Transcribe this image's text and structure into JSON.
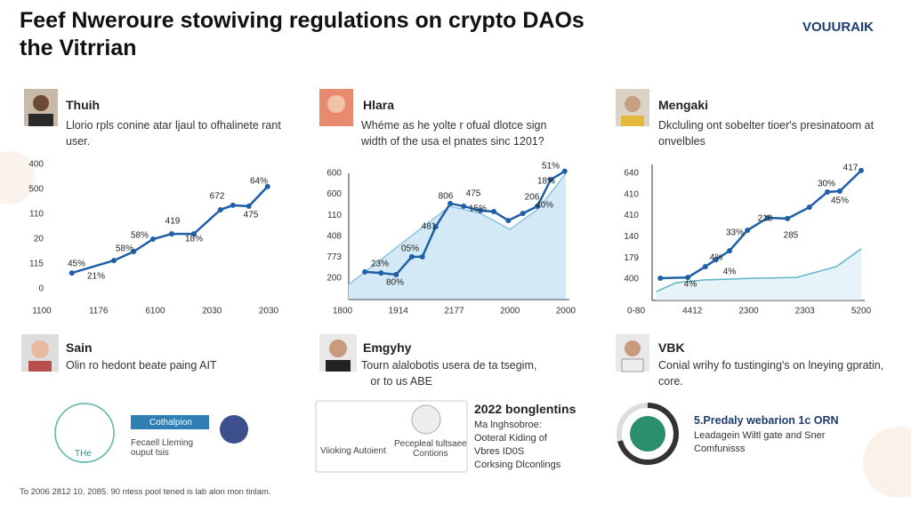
{
  "header": {
    "title": [
      "Feef Nweroure stowiving regulations on crypto DAOs",
      "the Vitrrian"
    ],
    "logo": "VOUURAIK"
  },
  "panels": [
    {
      "name": "Thuih",
      "text": [
        "Llorio rpls conine atar ljaul to ofhalinete rant",
        "user."
      ]
    },
    {
      "name": "Hlara",
      "text": [
        "Whéme as he yolte r ofual dlotce sign",
        "width of the usa el pnates sinc 1201?"
      ]
    },
    {
      "name": "Mengaki",
      "text": [
        "Dkcluling ont sobelter tioer's presinatoom at",
        "onvelbles"
      ]
    },
    {
      "name": "Sain",
      "text": [
        "Olin ro hedont beate paing AIT"
      ]
    },
    {
      "name": "Emgyhy",
      "text": [
        "Tourn alalobotis usera de ta tsegim,",
        "or to us ABE"
      ]
    },
    {
      "name": "VBK",
      "text": [
        "Conial wrihy fo tustinging's on lneying gpratin,",
        "core."
      ]
    }
  ],
  "chart_data": [
    {
      "type": "line",
      "xlim": [
        0,
        4
      ],
      "ylim": [
        0,
        5
      ],
      "xticks": [
        {
          "value": 0,
          "label": "1100"
        },
        {
          "value": 1,
          "label": "1176"
        },
        {
          "value": 2,
          "label": "6100"
        },
        {
          "value": 3,
          "label": "2030"
        },
        {
          "value": 4,
          "label": "2030"
        }
      ],
      "yticks": [
        0,
        {
          "value": 1,
          "label": "115"
        },
        {
          "value": 2,
          "label": "20"
        },
        {
          "value": 3,
          "label": "110"
        },
        {
          "value": 4,
          "label": "500"
        },
        {
          "value": 5,
          "label": "400"
        }
      ],
      "series": [
        {
          "color": "#1f5fa8",
          "x": [
            0.53,
            1.27,
            1.62,
            1.96,
            2.29,
            2.68,
            3.15,
            3.37,
            3.65,
            3.98
          ],
          "values": [
            0.64,
            1.14,
            1.5,
            2.0,
            2.21,
            2.21,
            3.18,
            3.36,
            3.32,
            4.11
          ]
        }
      ],
      "annotations": [
        "45%",
        "21%",
        "58%",
        "58%",
        "419",
        "18%",
        "672",
        "475",
        "64%"
      ]
    },
    {
      "type": "line",
      "xlim": [
        0,
        4
      ],
      "ylim": [
        -1,
        5.5
      ],
      "xticks": [
        {
          "value": 0,
          "label": "1800"
        },
        {
          "value": 1,
          "label": "1914"
        },
        {
          "value": 2,
          "label": "2177"
        },
        {
          "value": 3,
          "label": "2000"
        },
        {
          "value": 4,
          "label": "2000"
        }
      ],
      "yticks": [
        {
          "value": 0,
          "label": "200"
        },
        {
          "value": 1,
          "label": "773"
        },
        {
          "value": 2,
          "label": "408"
        },
        {
          "value": 3,
          "label": "110"
        },
        {
          "value": 4,
          "label": "600"
        },
        {
          "value": 5,
          "label": "600"
        }
      ],
      "series": [
        {
          "color": "#8ec3e0",
          "fill": "#d3e9f5",
          "x": [
            0.11,
            1.92,
            2.47,
            3.0,
            3.51,
            4.0
          ],
          "values": [
            -0.3,
            3.43,
            3.09,
            2.33,
            3.31,
            5.0
          ]
        },
        {
          "color": "#1f5fa8",
          "x": [
            0.4,
            0.69,
            0.96,
            1.24,
            1.43,
            1.67,
            1.93,
            2.17,
            2.47,
            2.71,
            2.97,
            3.23,
            3.49,
            3.73,
            3.98
          ],
          "values": [
            0.3,
            0.25,
            0.17,
            1.02,
            1.02,
            2.46,
            3.56,
            3.43,
            3.22,
            3.18,
            2.75,
            3.09,
            3.43,
            4.7,
            5.1
          ]
        }
      ],
      "annotations": [
        "23%",
        "80%",
        "05%",
        "481",
        "806",
        "475",
        "15%",
        "206",
        "40%",
        "18%",
        "51%"
      ]
    },
    {
      "type": "line",
      "xlim": [
        0,
        4
      ],
      "ylim": [
        -1,
        5.5
      ],
      "xticks": [
        {
          "value": 0,
          "label": "0-80"
        },
        {
          "value": 1,
          "label": "4412"
        },
        {
          "value": 2,
          "label": "2300"
        },
        {
          "value": 3,
          "label": "2303"
        },
        {
          "value": 4,
          "label": "5200"
        }
      ],
      "yticks": [
        {
          "value": 0,
          "label": "400"
        },
        {
          "value": 1,
          "label": "179"
        },
        {
          "value": 2,
          "label": "140"
        },
        {
          "value": 3,
          "label": "410"
        },
        {
          "value": 4,
          "label": "410"
        },
        {
          "value": 5,
          "label": "640"
        }
      ],
      "series": [
        {
          "color": "#5fb3c9",
          "fill": "#e6f3f8",
          "x": [
            0.36,
            0.71,
            1.19,
            2.13,
            2.85,
            3.56,
            4.0
          ],
          "values": [
            -0.59,
            -0.17,
            -0.04,
            0.04,
            0.08,
            0.59,
            1.43
          ]
        },
        {
          "color": "#1f5fa8",
          "x": [
            0.43,
            0.92,
            1.23,
            1.42,
            1.66,
            1.98,
            2.34,
            2.69,
            3.08,
            3.4,
            3.62,
            4.0
          ],
          "values": [
            0.04,
            0.08,
            0.59,
            0.92,
            1.34,
            2.31,
            2.9,
            2.86,
            3.4,
            4.12,
            4.16,
            5.13
          ]
        }
      ],
      "annotations": [
        "4%",
        "4%",
        "4%",
        "33%",
        "218",
        "285",
        "30%",
        "45%",
        "417"
      ]
    }
  ],
  "logos": {
    "left": [
      "THe",
      "Cothalpion",
      "Fecaell Lleming",
      "ouput tsis"
    ],
    "middle": [
      "Viioking Autoient",
      "Pecepleal tultsaee",
      "Contions",
      "2022 bonglentins",
      "Ma lnghsobroe:",
      "Ooteral Kiding of",
      "Vbres ID0S",
      "Corksing Dlconlings"
    ],
    "right": [
      "5.Predaly webarion 1c ORN",
      "Leadagein Wiltl gate and Sner",
      "Comfunisss"
    ]
  },
  "footer": "To 2006 2812 10, 2085. 90 ntess pool tened is lab alon mon tinlam."
}
